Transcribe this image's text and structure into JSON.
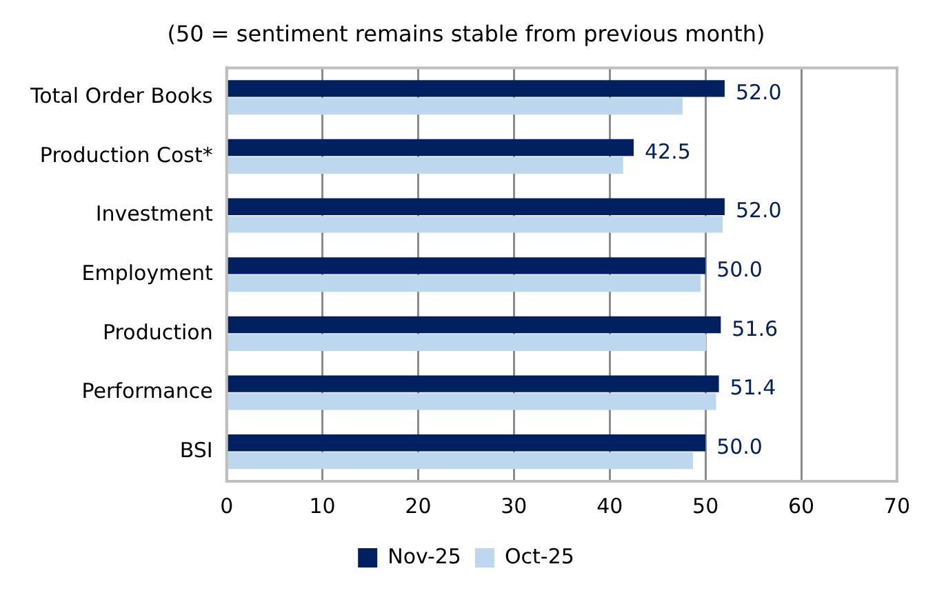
{
  "chart_data": {
    "type": "bar",
    "orientation": "horizontal",
    "title": "(50 = sentiment remains stable from previous month)",
    "categories": [
      "Total Order Books",
      "Production Cost*",
      "Investment",
      "Employment",
      "Production",
      "Performance",
      "BSI"
    ],
    "series": [
      {
        "name": "Nov-25",
        "color": "#002060",
        "values": [
          52.0,
          42.5,
          52.0,
          50.0,
          51.6,
          51.4,
          50.0
        ],
        "value_labels": [
          "52.0",
          "42.5",
          "52.0",
          "50.0",
          "51.6",
          "51.4",
          "50.0"
        ]
      },
      {
        "name": "Oct-25",
        "color": "#bdd7ee",
        "values": [
          47.6,
          41.4,
          51.8,
          49.5,
          50.1,
          51.1,
          48.7
        ]
      }
    ],
    "xlim": [
      0,
      70
    ],
    "xticks": [
      0,
      10,
      20,
      30,
      40,
      50,
      60,
      70
    ],
    "grid": "x",
    "legend": "bottom"
  }
}
